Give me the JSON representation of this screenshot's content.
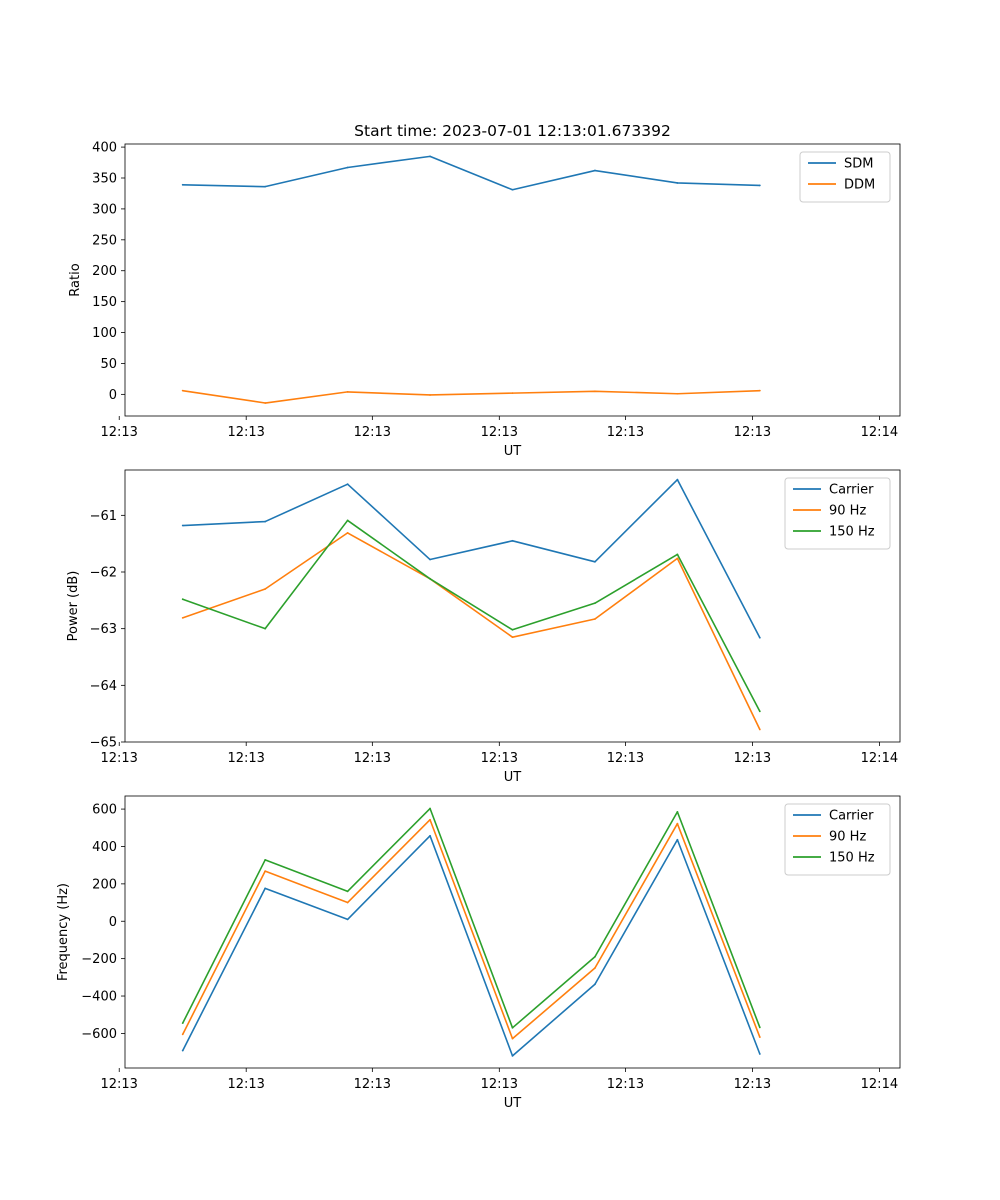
{
  "chart_data": [
    {
      "type": "line",
      "title": "Start time: 2023-07-01 12:13:01.673392",
      "xlabel": "UT",
      "ylabel": "Ratio",
      "xlim": [
        -0.7,
        8.7
      ],
      "ylim": [
        -35,
        405
      ],
      "x": [
        0,
        1,
        2,
        3,
        4,
        5,
        6,
        7
      ],
      "xticks": [
        -0.77,
        0.77,
        2.3,
        3.84,
        5.37,
        6.91,
        8.45
      ],
      "xtick_labels": [
        "12:13",
        "12:13",
        "12:13",
        "12:13",
        "12:13",
        "12:13",
        "12:14"
      ],
      "yticks": [
        0,
        50,
        100,
        150,
        200,
        250,
        300,
        350,
        400
      ],
      "ytick_labels": [
        "0",
        "50",
        "100",
        "150",
        "200",
        "250",
        "300",
        "350",
        "400"
      ],
      "grid": false,
      "legend": "top-right",
      "series": [
        {
          "name": "SDM",
          "color": "#1f77b4",
          "values": [
            339,
            336,
            367,
            385,
            331,
            362,
            342,
            338
          ]
        },
        {
          "name": "DDM",
          "color": "#ff7f0e",
          "values": [
            6,
            -14,
            4,
            -1,
            2,
            5,
            1,
            6
          ]
        }
      ]
    },
    {
      "type": "line",
      "title": "",
      "xlabel": "UT",
      "ylabel": "Power (dB)",
      "xlim": [
        -0.7,
        8.7
      ],
      "ylim": [
        -65.0,
        -60.2
      ],
      "x": [
        0,
        1,
        2,
        3,
        4,
        5,
        6,
        7
      ],
      "xticks": [
        -0.77,
        0.77,
        2.3,
        3.84,
        5.37,
        6.91,
        8.45
      ],
      "xtick_labels": [
        "12:13",
        "12:13",
        "12:13",
        "12:13",
        "12:13",
        "12:13",
        "12:14"
      ],
      "yticks": [
        -65,
        -64,
        -63,
        -62,
        -61
      ],
      "ytick_labels": [
        "−65",
        "−64",
        "−63",
        "−62",
        "−61"
      ],
      "grid": false,
      "legend": "top-right",
      "series": [
        {
          "name": "Carrier",
          "color": "#1f77b4",
          "values": [
            -61.18,
            -61.11,
            -60.45,
            -61.78,
            -61.45,
            -61.82,
            -60.37,
            -63.16
          ]
        },
        {
          "name": "90 Hz",
          "color": "#ff7f0e",
          "values": [
            -62.81,
            -62.3,
            -61.31,
            -62.12,
            -63.15,
            -62.83,
            -61.76,
            -64.78
          ]
        },
        {
          "name": "150 Hz",
          "color": "#2ca02c",
          "values": [
            -62.48,
            -63.0,
            -61.09,
            -62.12,
            -63.02,
            -62.55,
            -61.69,
            -64.46
          ]
        }
      ]
    },
    {
      "type": "line",
      "title": "",
      "xlabel": "UT",
      "ylabel": "Frequency (Hz)",
      "xlim": [
        -0.7,
        8.7
      ],
      "ylim": [
        -785,
        670
      ],
      "x": [
        0,
        1,
        2,
        3,
        4,
        5,
        6,
        7
      ],
      "xticks": [
        -0.77,
        0.77,
        2.3,
        3.84,
        5.37,
        6.91,
        8.45
      ],
      "xtick_labels": [
        "12:13",
        "12:13",
        "12:13",
        "12:13",
        "12:13",
        "12:13",
        "12:14"
      ],
      "yticks": [
        -600,
        -400,
        -200,
        0,
        200,
        400,
        600
      ],
      "ytick_labels": [
        "−600",
        "−400",
        "−200",
        "0",
        "200",
        "400",
        "600"
      ],
      "grid": false,
      "legend": "top-right",
      "series": [
        {
          "name": "Carrier",
          "color": "#1f77b4",
          "values": [
            -692,
            176,
            10,
            457,
            -720,
            -337,
            436,
            -710
          ]
        },
        {
          "name": "90 Hz",
          "color": "#ff7f0e",
          "values": [
            -605,
            268,
            100,
            543,
            -628,
            -250,
            522,
            -620
          ]
        },
        {
          "name": "150 Hz",
          "color": "#2ca02c",
          "values": [
            -545,
            328,
            160,
            603,
            -570,
            -190,
            585,
            -568
          ]
        }
      ]
    }
  ]
}
